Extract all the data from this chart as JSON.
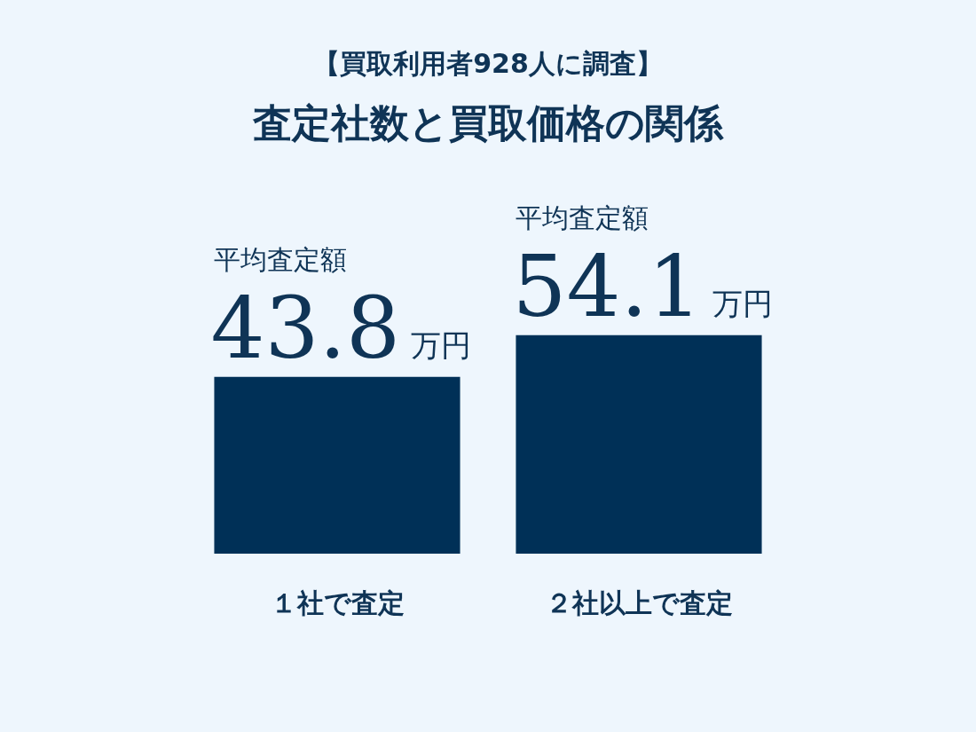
{
  "chart_data": {
    "type": "bar",
    "subtitle": "【買取利用者928人に調査】",
    "title": "査定社数と買取価格の関係",
    "categories": [
      "１社で査定",
      "２社以上で査定"
    ],
    "values": [
      43.8,
      54.1
    ],
    "color": "#003057",
    "value_labels": [
      "43.8万円",
      "54.1万円"
    ],
    "annotations": [
      "平均査定額",
      "平均査定額"
    ],
    "grid": false,
    "legend": false
  }
}
